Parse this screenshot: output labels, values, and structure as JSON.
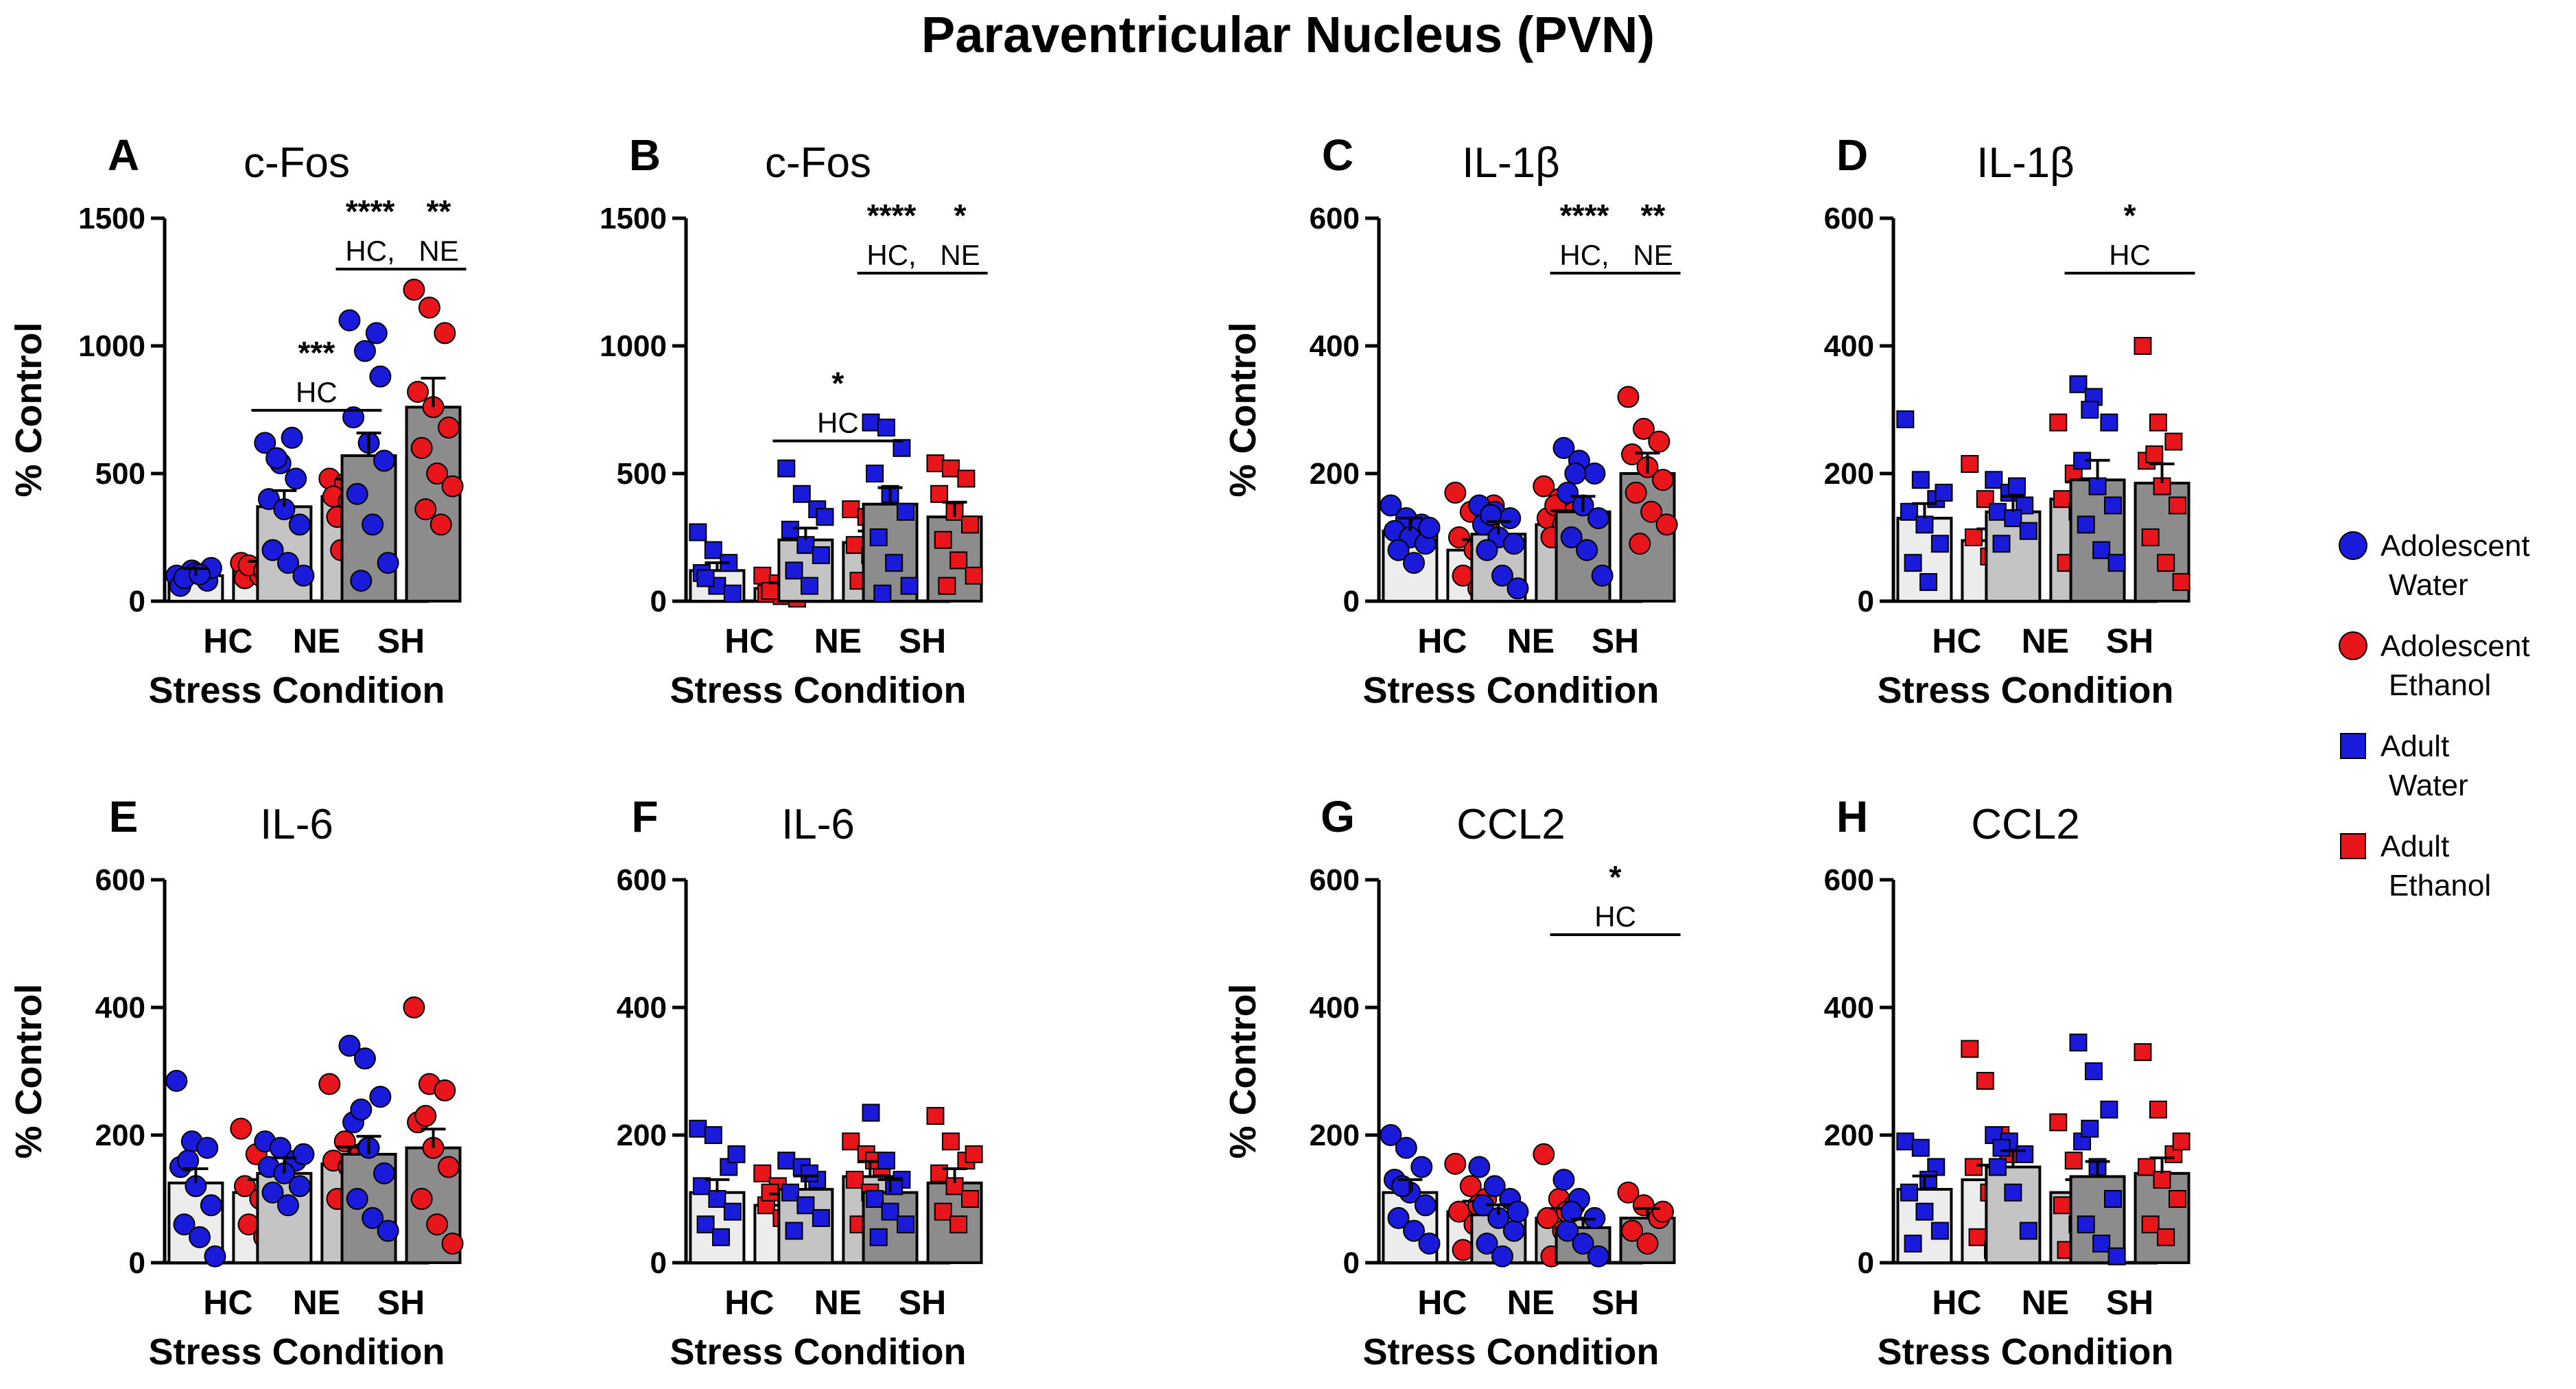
{
  "figure_title": "Paraventricular Nucleus (PVN)",
  "colors": {
    "water": "#1a1adb",
    "ethanol": "#e8151b",
    "bar_HC": "#ececec",
    "bar_NE": "#c4c4c4",
    "bar_SH": "#8c8c8c"
  },
  "legend": [
    {
      "label_line1": "Adolescent",
      "label_line2": "Water",
      "marker": "circle",
      "color": "#1a1adb"
    },
    {
      "label_line1": "Adolescent",
      "label_line2": "Ethanol",
      "marker": "circle",
      "color": "#e8151b"
    },
    {
      "label_line1": "Adult",
      "label_line2": "Water",
      "marker": "square",
      "color": "#1a1adb"
    },
    {
      "label_line1": "Adult",
      "label_line2": "Ethanol",
      "marker": "square",
      "color": "#e8151b"
    }
  ],
  "chart_data": [
    {
      "panel": "A",
      "title": "c-Fos",
      "type": "bar",
      "group": "Adolescent",
      "marker": "circle",
      "ylabel": "% Control",
      "xlabel": "Stress Condition",
      "ylim": [
        0,
        1500
      ],
      "yticks": [
        0,
        500,
        1000,
        1500
      ],
      "categories": [
        "HC",
        "NE",
        "SH"
      ],
      "series": [
        {
          "name": "Water",
          "values": [
            100,
            370,
            570
          ],
          "points": [
            [
              100,
              120,
              80,
              60,
              110,
              130,
              90,
              105
            ],
            [
              620,
              540,
              480,
              400,
              360,
              300,
              200,
              150,
              100,
              560,
              640
            ],
            [
              1100,
              980,
              880,
              720,
              620,
              550,
              420,
              300,
              150,
              80,
              1050
            ]
          ]
        },
        {
          "name": "Ethanol",
          "values": [
            125,
            410,
            760
          ],
          "points": [
            [
              150,
              130,
              110,
              90,
              100,
              170,
              140,
              120,
              160
            ],
            [
              480,
              460,
              440,
              410,
              390,
              370,
              330,
              300,
              260,
              200,
              500
            ],
            [
              1220,
              1150,
              1050,
              820,
              760,
              680,
              600,
              500,
              450,
              360,
              300
            ]
          ]
        }
      ],
      "significance": [
        {
          "category": "NE",
          "stars": "***",
          "label": "HC"
        },
        {
          "category": "SH",
          "stars": "****",
          "label": "HC,",
          "stars2": "**",
          "label2": "NE"
        }
      ]
    },
    {
      "panel": "B",
      "title": "c-Fos",
      "type": "bar",
      "group": "Adult",
      "marker": "square",
      "ylabel": "",
      "xlabel": "Stress Condition",
      "ylim": [
        0,
        1500
      ],
      "yticks": [
        0,
        500,
        1000,
        1500
      ],
      "categories": [
        "HC",
        "NE",
        "SH"
      ],
      "series": [
        {
          "name": "Water",
          "values": [
            120,
            240,
            380
          ],
          "points": [
            [
              270,
              200,
              150,
              110,
              60,
              30,
              90
            ],
            [
              520,
              420,
              360,
              280,
              220,
              180,
              120,
              60,
              330
            ],
            [
              700,
              680,
              600,
              500,
              420,
              350,
              250,
              150,
              60,
              30
            ]
          ]
        },
        {
          "name": "Ethanol",
          "values": [
            50,
            230,
            330
          ],
          "points": [
            [
              100,
              70,
              50,
              30,
              20,
              10,
              40
            ],
            [
              360,
              330,
              280,
              220,
              180,
              120,
              80,
              60,
              300
            ],
            [
              540,
              520,
              480,
              420,
              350,
              300,
              240,
              160,
              100,
              60
            ]
          ]
        }
      ],
      "significance": [
        {
          "category": "NE",
          "stars": "*",
          "label": "HC"
        },
        {
          "category": "SH",
          "stars": "****",
          "label": "HC,",
          "stars2": "*",
          "label2": "NE"
        }
      ]
    },
    {
      "panel": "C",
      "title": "IL-1β",
      "type": "bar",
      "group": "Adolescent",
      "marker": "circle",
      "ylabel": "% Control",
      "xlabel": "Stress Condition",
      "ylim": [
        0,
        600
      ],
      "yticks": [
        0,
        200,
        400,
        600
      ],
      "categories": [
        "HC",
        "NE",
        "SH"
      ],
      "series": [
        {
          "name": "Water",
          "values": [
            110,
            105,
            140
          ],
          "points": [
            [
              150,
              130,
              120,
              110,
              100,
              90,
              80,
              60,
              115
            ],
            [
              150,
              140,
              130,
              120,
              100,
              90,
              80,
              40,
              20,
              135
            ],
            [
              240,
              220,
              200,
              170,
              150,
              130,
              100,
              80,
              40,
              200
            ]
          ]
        },
        {
          "name": "Ethanol",
          "values": [
            80,
            120,
            200
          ],
          "points": [
            [
              170,
              140,
              120,
              100,
              80,
              60,
              40,
              20,
              150
            ],
            [
              180,
              160,
              140,
              130,
              120,
              110,
              100,
              90,
              80,
              150
            ],
            [
              320,
              270,
              250,
              230,
              210,
              190,
              170,
              140,
              120,
              90
            ]
          ]
        }
      ],
      "significance": [
        {
          "category": "SH",
          "stars": "****",
          "label": "HC,",
          "stars2": "**",
          "label2": "NE"
        }
      ]
    },
    {
      "panel": "D",
      "title": "IL-1β",
      "type": "bar",
      "group": "Adult",
      "marker": "square",
      "ylabel": "",
      "xlabel": "Stress Condition",
      "ylim": [
        0,
        600
      ],
      "yticks": [
        0,
        200,
        400,
        600
      ],
      "categories": [
        "HC",
        "NE",
        "SH"
      ],
      "series": [
        {
          "name": "Water",
          "values": [
            130,
            140,
            190
          ],
          "points": [
            [
              285,
              190,
              160,
              140,
              120,
              90,
              60,
              30,
              170
            ],
            [
              190,
              170,
              150,
              140,
              130,
              110,
              90,
              180
            ],
            [
              340,
              320,
              280,
              220,
              180,
              150,
              120,
              80,
              60,
              300
            ]
          ]
        },
        {
          "name": "Ethanol",
          "values": [
            95,
            160,
            185
          ],
          "points": [
            [
              215,
              160,
              120,
              100,
              70,
              50
            ],
            [
              280,
              200,
              180,
              160,
              140,
              100,
              60,
              170
            ],
            [
              400,
              280,
              250,
              220,
              180,
              150,
              100,
              60,
              30,
              230
            ]
          ]
        }
      ],
      "significance": [
        {
          "category": "SH",
          "stars": "*",
          "label": "HC"
        }
      ]
    },
    {
      "panel": "E",
      "title": "IL-6",
      "type": "bar",
      "group": "Adolescent",
      "marker": "circle",
      "ylabel": "% Control",
      "xlabel": "Stress Condition",
      "ylim": [
        0,
        600
      ],
      "yticks": [
        0,
        200,
        400,
        600
      ],
      "categories": [
        "HC",
        "NE",
        "SH"
      ],
      "series": [
        {
          "name": "Water",
          "values": [
            125,
            140,
            170
          ],
          "points": [
            [
              285,
              190,
              180,
              150,
              120,
              90,
              60,
              40,
              10,
              160
            ],
            [
              190,
              180,
              160,
              150,
              140,
              120,
              110,
              90,
              170
            ],
            [
              340,
              320,
              260,
              220,
              180,
              140,
              100,
              70,
              50,
              240
            ]
          ]
        },
        {
          "name": "Ethanol",
          "values": [
            110,
            155,
            180
          ],
          "points": [
            [
              210,
              170,
              140,
              120,
              100,
              80,
              60,
              40,
              20
            ],
            [
              280,
              190,
              170,
              160,
              150,
              140,
              100,
              60,
              180
            ],
            [
              400,
              280,
              270,
              220,
              180,
              150,
              100,
              60,
              30,
              230
            ]
          ]
        }
      ],
      "significance": []
    },
    {
      "panel": "F",
      "title": "IL-6",
      "type": "bar",
      "group": "Adult",
      "marker": "square",
      "ylabel": "",
      "xlabel": "Stress Condition",
      "ylim": [
        0,
        600
      ],
      "yticks": [
        0,
        200,
        400,
        600
      ],
      "categories": [
        "HC",
        "NE",
        "SH"
      ],
      "series": [
        {
          "name": "Water",
          "values": [
            110,
            115,
            110
          ],
          "points": [
            [
              210,
              200,
              150,
              120,
              100,
              80,
              60,
              40,
              170
            ],
            [
              160,
              150,
              130,
              110,
              90,
              70,
              50,
              140
            ],
            [
              235,
              160,
              130,
              100,
              80,
              60,
              40,
              120
            ]
          ]
        },
        {
          "name": "Ethanol",
          "values": [
            90,
            135,
            125
          ],
          "points": [
            [
              140,
              120,
              100,
              90,
              70,
              50,
              110
            ],
            [
              190,
              170,
              150,
              130,
              110,
              90,
              60,
              160
            ],
            [
              230,
              190,
              160,
              140,
              120,
              100,
              80,
              60,
              170
            ]
          ]
        }
      ],
      "significance": []
    },
    {
      "panel": "G",
      "title": "CCL2",
      "type": "bar",
      "group": "Adolescent",
      "marker": "circle",
      "ylabel": "% Control",
      "xlabel": "Stress Condition",
      "ylim": [
        0,
        600
      ],
      "yticks": [
        0,
        200,
        400,
        600
      ],
      "categories": [
        "HC",
        "NE",
        "SH"
      ],
      "series": [
        {
          "name": "Water",
          "values": [
            110,
            75,
            55
          ],
          "points": [
            [
              200,
              180,
              150,
              130,
              110,
              90,
              70,
              50,
              30,
              120
            ],
            [
              150,
              120,
              100,
              90,
              70,
              50,
              30,
              10,
              80
            ],
            [
              130,
              100,
              70,
              50,
              30,
              10,
              80
            ]
          ]
        },
        {
          "name": "Ethanol",
          "values": [
            80,
            70,
            70
          ],
          "points": [
            [
              155,
              120,
              100,
              80,
              60,
              40,
              20,
              90
            ],
            [
              170,
              100,
              90,
              70,
              50,
              30,
              10,
              80
            ],
            [
              110,
              90,
              70,
              50,
              30,
              80
            ]
          ]
        }
      ],
      "significance": [
        {
          "category": "SH",
          "stars": "*",
          "label": "HC"
        }
      ]
    },
    {
      "panel": "H",
      "title": "CCL2",
      "type": "bar",
      "group": "Adult",
      "marker": "square",
      "ylabel": "",
      "xlabel": "Stress Condition",
      "ylim": [
        0,
        600
      ],
      "yticks": [
        0,
        200,
        400,
        600
      ],
      "categories": [
        "HC",
        "NE",
        "SH"
      ],
      "series": [
        {
          "name": "Water",
          "values": [
            115,
            150,
            135
          ],
          "points": [
            [
              190,
              180,
              150,
              110,
              80,
              50,
              30,
              130
            ],
            [
              200,
              190,
              170,
              150,
              110,
              50,
              180
            ],
            [
              345,
              300,
              240,
              190,
              150,
              100,
              60,
              30,
              10,
              210
            ]
          ]
        },
        {
          "name": "Ethanol",
          "values": [
            130,
            110,
            140
          ],
          "points": [
            [
              335,
              285,
              200,
              150,
              110,
              70,
              40,
              20,
              170
            ],
            [
              220,
              160,
              120,
              90,
              60,
              40,
              20,
              100
            ],
            [
              330,
              240,
              170,
              150,
              130,
              100,
              60,
              40,
              190
            ]
          ]
        }
      ],
      "significance": []
    }
  ]
}
